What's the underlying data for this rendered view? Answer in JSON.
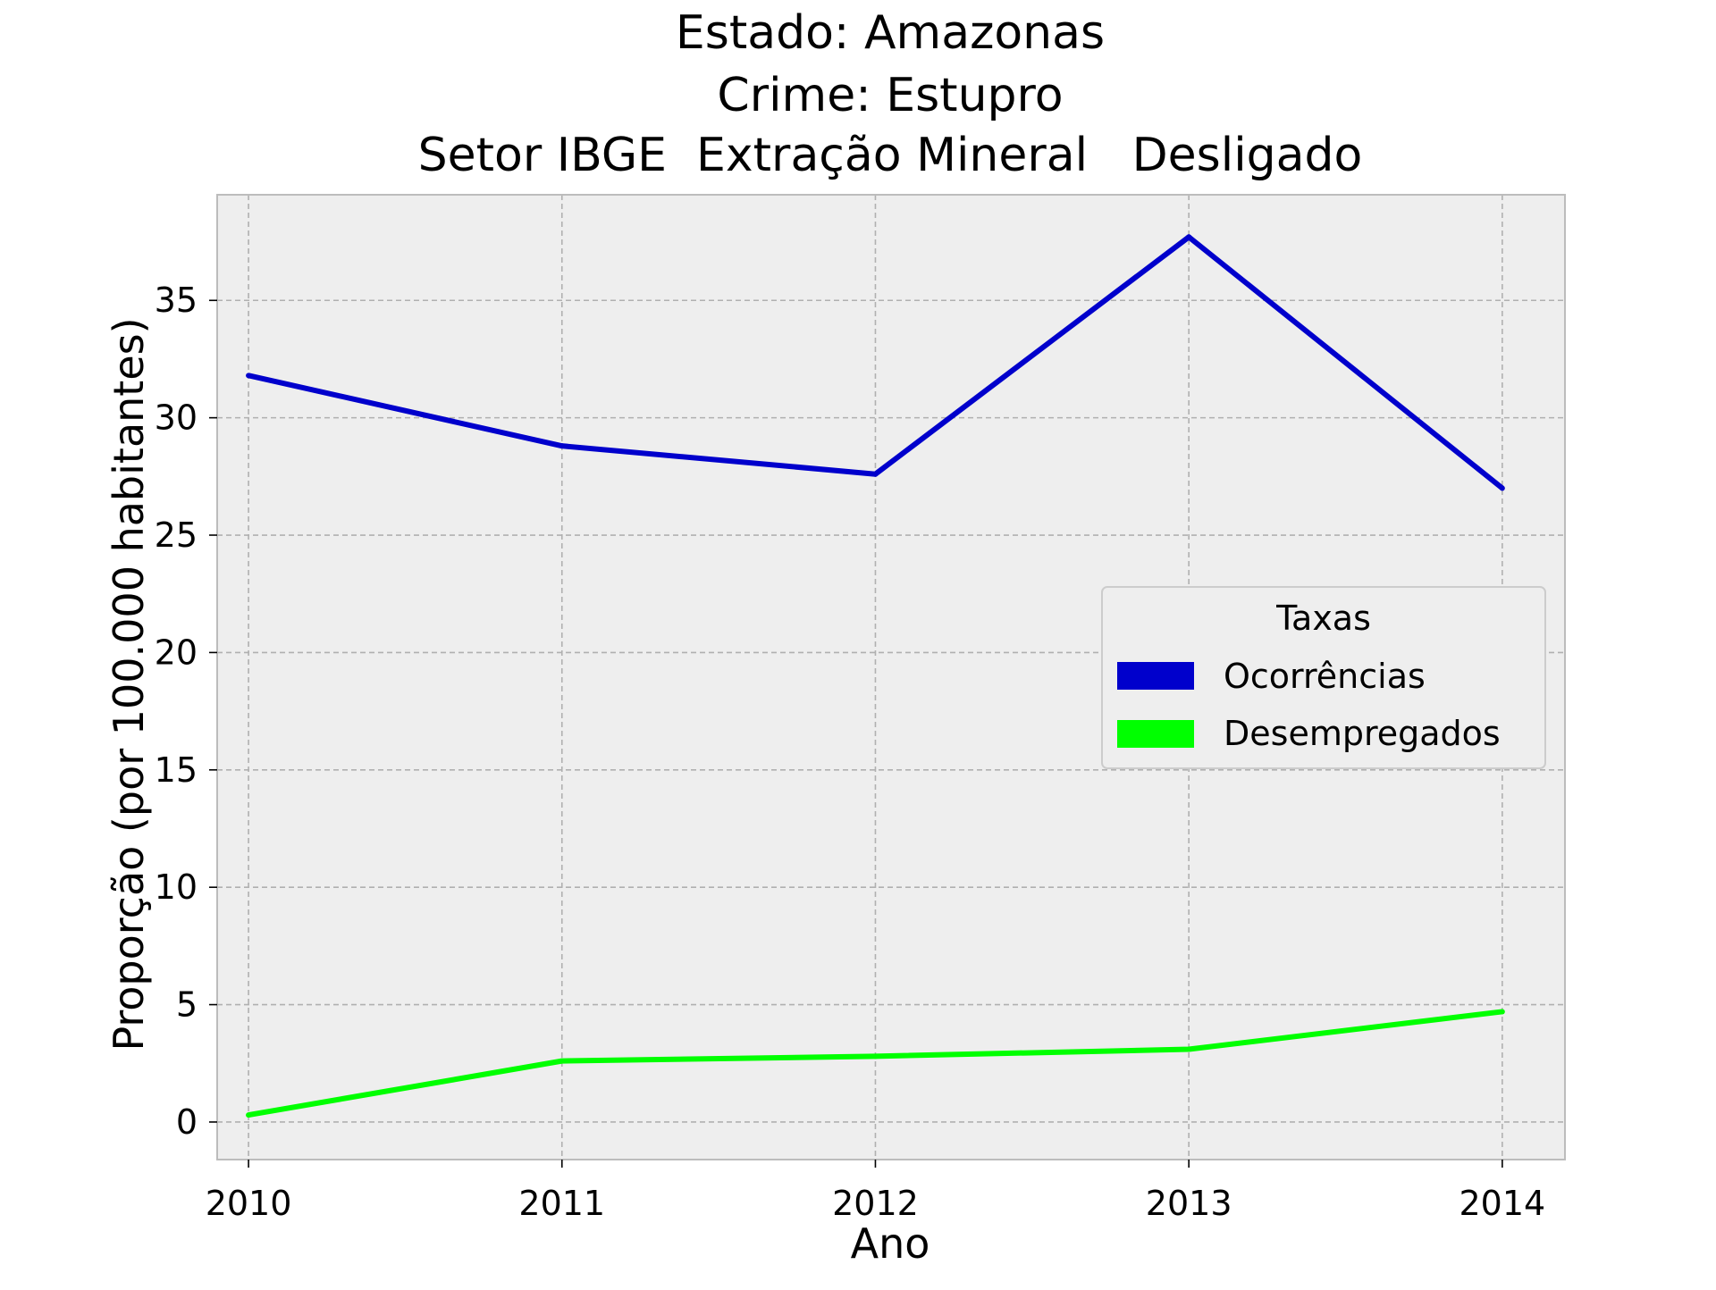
{
  "chart_data": {
    "type": "line",
    "title_lines": [
      "Estado: Amazonas",
      "Crime: Estupro",
      "Setor IBGE  Extração Mineral   Desligado"
    ],
    "xlabel": "Ano",
    "ylabel": "Proporção (por 100.000 habitantes)",
    "x": [
      2010,
      2011,
      2012,
      2013,
      2014
    ],
    "x_tick_labels": [
      "2010",
      "2011",
      "2012",
      "2013",
      "2014"
    ],
    "y_ticks": [
      0,
      5,
      10,
      15,
      20,
      25,
      30,
      35
    ],
    "y_tick_labels": [
      "0",
      "5",
      "10",
      "15",
      "20",
      "25",
      "30",
      "35"
    ],
    "xlim": [
      2009.9,
      2014.2
    ],
    "ylim": [
      -1.6,
      39.5
    ],
    "grid": true,
    "legend": {
      "title": "Taxas",
      "placement": "center-right"
    },
    "series": [
      {
        "name": "Ocorrências",
        "color": "#0000cc",
        "values": [
          31.8,
          28.8,
          27.6,
          37.7,
          27.0
        ]
      },
      {
        "name": "Desempregados",
        "color": "#00ff00",
        "values": [
          0.3,
          2.6,
          2.8,
          3.1,
          4.7
        ]
      }
    ]
  }
}
